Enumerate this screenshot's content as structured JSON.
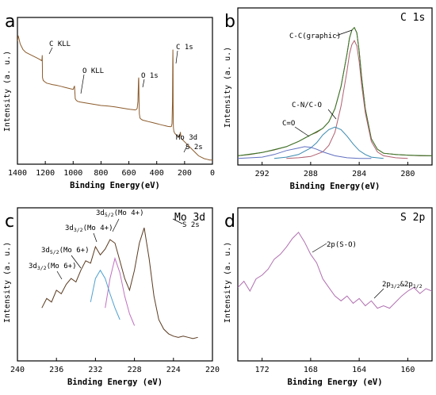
{
  "chart_data": [
    {
      "type": "line",
      "panel": "a",
      "xlabel": "Binding Energy(eV)",
      "ylabel": "Intensity  (a. u.)",
      "xlim": [
        1400,
        0
      ],
      "xticks": [
        1400,
        1200,
        1000,
        800,
        600,
        400,
        200,
        0
      ],
      "annotations": [
        "C KLL",
        "O KLL",
        "O 1s",
        "C 1s",
        "Mo 3d",
        "S 2s"
      ],
      "series": [
        {
          "color": "#8b5a2b",
          "x": [
            1400,
            1395,
            1390,
            1380,
            1370,
            1360,
            1340,
            1320,
            1300,
            1280,
            1260,
            1240,
            1225,
            1222,
            1220,
            1215,
            1205,
            1190,
            1170,
            1150,
            1120,
            1100,
            1080,
            1060,
            1040,
            1020,
            1000,
            990,
            985,
            980,
            975,
            970,
            950,
            920,
            890,
            860,
            830,
            800,
            770,
            740,
            700,
            670,
            640,
            610,
            590,
            570,
            555,
            545,
            540,
            535,
            531,
            529,
            527,
            525,
            520,
            510,
            500,
            480,
            460,
            440,
            420,
            400,
            380,
            360,
            340,
            320,
            300,
            295,
            290,
            287,
            285,
            284,
            283,
            282,
            281,
            280,
            278,
            275,
            270,
            260,
            250,
            240,
            235,
            232,
            230,
            228,
            226,
            224,
            220,
            210,
            200,
            180,
            160,
            140,
            120,
            100,
            80,
            60,
            40,
            20,
            10,
            0
          ],
          "y": [
            0.88,
            0.92,
            0.9,
            0.86,
            0.84,
            0.82,
            0.8,
            0.79,
            0.78,
            0.77,
            0.76,
            0.75,
            0.74,
            0.78,
            0.62,
            0.6,
            0.59,
            0.58,
            0.575,
            0.57,
            0.565,
            0.56,
            0.555,
            0.55,
            0.545,
            0.54,
            0.535,
            0.56,
            0.47,
            0.46,
            0.455,
            0.45,
            0.445,
            0.44,
            0.435,
            0.43,
            0.425,
            0.42,
            0.418,
            0.415,
            0.41,
            0.405,
            0.4,
            0.395,
            0.392,
            0.39,
            0.388,
            0.392,
            0.4,
            0.45,
            0.6,
            0.62,
            0.45,
            0.36,
            0.33,
            0.32,
            0.315,
            0.31,
            0.305,
            0.3,
            0.295,
            0.29,
            0.285,
            0.28,
            0.275,
            0.27,
            0.268,
            0.27,
            0.29,
            0.45,
            0.72,
            0.82,
            0.7,
            0.42,
            0.3,
            0.26,
            0.24,
            0.23,
            0.22,
            0.21,
            0.2,
            0.195,
            0.2,
            0.22,
            0.23,
            0.21,
            0.2,
            0.19,
            0.18,
            0.17,
            0.16,
            0.14,
            0.12,
            0.1,
            0.08,
            0.06,
            0.05,
            0.04,
            0.035,
            0.03,
            0.03,
            0.03
          ]
        }
      ]
    },
    {
      "type": "line",
      "panel": "b",
      "title": "C 1s",
      "xlabel": "Binding Energy(eV)",
      "ylabel": "Intensity  (a. u.)",
      "xlim": [
        294,
        278
      ],
      "xticks": [
        292,
        288,
        284,
        280
      ],
      "annotations": [
        "C-C(graphic)",
        "C-N/C-O",
        "C=O"
      ],
      "series": [
        {
          "color": "#6b3a1f",
          "x": [
            294,
            293,
            292,
            291,
            290,
            289.5,
            289,
            288.5,
            288,
            287.5,
            287,
            286.5,
            286,
            285.5,
            285,
            284.8,
            284.6,
            284.4,
            284.2,
            284,
            283.8,
            283.5,
            283,
            282.5,
            282,
            281,
            280,
            279,
            278
          ],
          "y": [
            0.02,
            0.03,
            0.045,
            0.065,
            0.09,
            0.11,
            0.13,
            0.155,
            0.18,
            0.2,
            0.23,
            0.28,
            0.38,
            0.55,
            0.8,
            0.92,
            0.98,
            1.0,
            0.96,
            0.82,
            0.62,
            0.38,
            0.15,
            0.07,
            0.04,
            0.03,
            0.025,
            0.02,
            0.02
          ]
        },
        {
          "color": "#3a7a2a",
          "x": [
            294,
            292,
            290,
            289,
            288,
            287,
            286.5,
            286,
            285.5,
            285,
            284.8,
            284.6,
            284.4,
            284.2,
            284,
            283.8,
            283.5,
            283,
            282.5,
            282,
            281,
            280,
            278
          ],
          "y": [
            0.02,
            0.045,
            0.09,
            0.13,
            0.18,
            0.23,
            0.28,
            0.38,
            0.55,
            0.8,
            0.92,
            0.98,
            1.0,
            0.96,
            0.82,
            0.62,
            0.38,
            0.15,
            0.07,
            0.04,
            0.03,
            0.025,
            0.02
          ]
        },
        {
          "color": "#b06070",
          "x": [
            290,
            289,
            288,
            287,
            286.5,
            286,
            285.5,
            285,
            284.8,
            284.6,
            284.4,
            284.2,
            284,
            283.8,
            283.5,
            283,
            282.5,
            282,
            281,
            280
          ],
          "y": [
            0.0,
            0.005,
            0.015,
            0.05,
            0.1,
            0.2,
            0.4,
            0.67,
            0.8,
            0.87,
            0.9,
            0.86,
            0.74,
            0.56,
            0.35,
            0.13,
            0.05,
            0.02,
            0.005,
            0.0
          ]
        },
        {
          "color": "#3a8ab0",
          "x": [
            291,
            290,
            289,
            288,
            287.5,
            287,
            286.5,
            286,
            285.5,
            285,
            284.5,
            284,
            283.5,
            283,
            282
          ],
          "y": [
            0.0,
            0.01,
            0.03,
            0.08,
            0.12,
            0.18,
            0.22,
            0.24,
            0.22,
            0.17,
            0.11,
            0.06,
            0.03,
            0.01,
            0.0
          ]
        },
        {
          "color": "#6070c0",
          "x": [
            294,
            292,
            291,
            290,
            289,
            288.5,
            288,
            287.5,
            287,
            286,
            285,
            284,
            283
          ],
          "y": [
            0.0,
            0.01,
            0.03,
            0.06,
            0.08,
            0.09,
            0.085,
            0.07,
            0.05,
            0.02,
            0.005,
            0.0,
            0.0
          ]
        }
      ]
    },
    {
      "type": "line",
      "panel": "c",
      "title": "Mo 3d",
      "xlabel": "Binding Energy (eV)",
      "ylabel": "Intensity  (a. u.)",
      "xlim": [
        240,
        220
      ],
      "xticks": [
        240,
        236,
        232,
        228,
        224,
        220
      ],
      "annotations": [
        "3d5/2(Mo 4+)",
        "3d3/2(Mo 4+)",
        "3d5/2(Mo 6+)",
        "3d3/2(Mo 6+)",
        "S 2s"
      ],
      "series": [
        {
          "color": "#5a3a20",
          "x": [
            237.5,
            237,
            236.5,
            236,
            235.5,
            235,
            234.5,
            234,
            233.5,
            233,
            232.5,
            232,
            231.5,
            231,
            230.5,
            230,
            229.5,
            229,
            228.5,
            228,
            227.5,
            227,
            226.5,
            226,
            225.5,
            225,
            224.5,
            224,
            223.5,
            223,
            222.5,
            222,
            221.5
          ],
          "y": [
            0.3,
            0.38,
            0.35,
            0.45,
            0.42,
            0.5,
            0.55,
            0.52,
            0.62,
            0.7,
            0.68,
            0.82,
            0.75,
            0.8,
            0.88,
            0.85,
            0.7,
            0.55,
            0.45,
            0.62,
            0.85,
            0.98,
            0.72,
            0.4,
            0.2,
            0.12,
            0.08,
            0.06,
            0.05,
            0.06,
            0.05,
            0.04,
            0.05
          ]
        },
        {
          "color": "#c070c0",
          "x": [
            231,
            230.5,
            230,
            229.5,
            229,
            228.5,
            228
          ],
          "y": [
            0.3,
            0.55,
            0.72,
            0.6,
            0.4,
            0.25,
            0.15
          ]
        },
        {
          "color": "#50a0d0",
          "x": [
            232.5,
            232,
            231.5,
            231,
            230.5,
            230,
            229.5
          ],
          "y": [
            0.35,
            0.55,
            0.62,
            0.55,
            0.42,
            0.3,
            0.2
          ]
        }
      ]
    },
    {
      "type": "line",
      "panel": "d",
      "title": "S 2p",
      "xlabel": "Binding Energy (eV)",
      "ylabel": "Intensity  (a. u.)",
      "xlim": [
        174,
        158
      ],
      "xticks": [
        172,
        168,
        164,
        160
      ],
      "annotations": [
        "2p(S-O)",
        "2p3/2&2p1/2"
      ],
      "series": [
        {
          "color": "#b070b0",
          "x": [
            174,
            173.5,
            173,
            172.5,
            172,
            171.5,
            171,
            170.5,
            170,
            169.5,
            169,
            168.5,
            168,
            167.5,
            167,
            166.5,
            166,
            165.5,
            165,
            164.5,
            164,
            163.5,
            163,
            162.5,
            162,
            161.5,
            161,
            160.5,
            160,
            159.5,
            159,
            158.5,
            158
          ],
          "y": [
            0.45,
            0.5,
            0.42,
            0.52,
            0.55,
            0.6,
            0.68,
            0.72,
            0.78,
            0.85,
            0.9,
            0.82,
            0.72,
            0.65,
            0.52,
            0.45,
            0.38,
            0.34,
            0.38,
            0.32,
            0.36,
            0.3,
            0.34,
            0.28,
            0.3,
            0.28,
            0.33,
            0.38,
            0.42,
            0.45,
            0.4,
            0.44,
            0.42
          ]
        }
      ]
    }
  ],
  "page_labels": {
    "a": "a",
    "b": "b",
    "c": "c",
    "d": "d"
  }
}
